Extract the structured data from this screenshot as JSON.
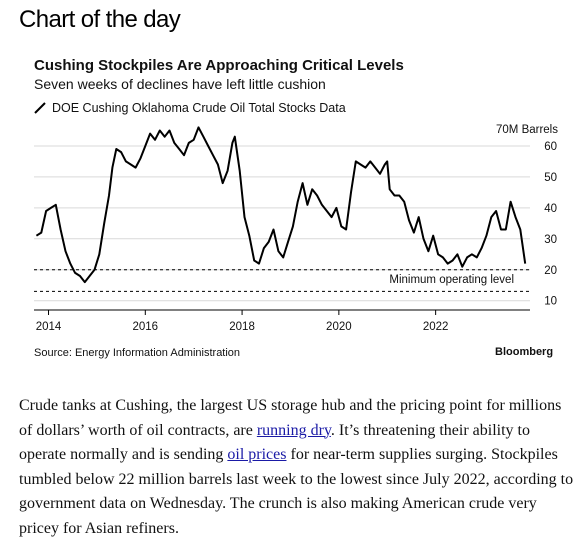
{
  "page": {
    "heading": "Chart of the day"
  },
  "chart_data": {
    "type": "line",
    "title": "Cushing Stockpiles Are Approaching Critical Levels",
    "subtitle": "Seven weeks of declines have left little cushion",
    "legend": "DOE Cushing Oklahoma Crude Oil Total Stocks Data",
    "y_unit_label": "70M Barrels",
    "ylim": [
      7,
      70
    ],
    "xlim": [
      2013.7,
      2023.95
    ],
    "y_ticks": [
      10,
      20,
      30,
      40,
      50,
      60
    ],
    "x_ticks": [
      2014,
      2016,
      2018,
      2020,
      2022
    ],
    "reference_lines": [
      {
        "label": "Minimum operating level",
        "value": 20
      },
      {
        "value": 13
      }
    ],
    "series": [
      {
        "name": "DOE Cushing Oklahoma Crude Oil Total Stocks Data",
        "points": [
          [
            2013.75,
            31
          ],
          [
            2013.85,
            32
          ],
          [
            2013.95,
            39
          ],
          [
            2014.05,
            40
          ],
          [
            2014.15,
            41
          ],
          [
            2014.25,
            33
          ],
          [
            2014.35,
            26
          ],
          [
            2014.45,
            22
          ],
          [
            2014.55,
            19
          ],
          [
            2014.65,
            18
          ],
          [
            2014.75,
            16
          ],
          [
            2014.85,
            18
          ],
          [
            2014.95,
            20
          ],
          [
            2015.05,
            25
          ],
          [
            2015.15,
            35
          ],
          [
            2015.25,
            44
          ],
          [
            2015.32,
            53
          ],
          [
            2015.4,
            59
          ],
          [
            2015.5,
            58
          ],
          [
            2015.6,
            55
          ],
          [
            2015.7,
            54
          ],
          [
            2015.8,
            53
          ],
          [
            2015.9,
            56
          ],
          [
            2016.0,
            60
          ],
          [
            2016.1,
            64
          ],
          [
            2016.2,
            62
          ],
          [
            2016.3,
            65
          ],
          [
            2016.4,
            63
          ],
          [
            2016.5,
            65
          ],
          [
            2016.6,
            61
          ],
          [
            2016.7,
            59
          ],
          [
            2016.8,
            57
          ],
          [
            2016.9,
            61
          ],
          [
            2017.0,
            62
          ],
          [
            2017.1,
            66
          ],
          [
            2017.2,
            63
          ],
          [
            2017.3,
            60
          ],
          [
            2017.4,
            57
          ],
          [
            2017.5,
            54
          ],
          [
            2017.6,
            48
          ],
          [
            2017.7,
            52
          ],
          [
            2017.8,
            61
          ],
          [
            2017.85,
            63
          ],
          [
            2017.95,
            52
          ],
          [
            2018.05,
            37
          ],
          [
            2018.15,
            31
          ],
          [
            2018.25,
            23
          ],
          [
            2018.35,
            22
          ],
          [
            2018.45,
            27
          ],
          [
            2018.55,
            29
          ],
          [
            2018.65,
            33
          ],
          [
            2018.75,
            26
          ],
          [
            2018.85,
            24
          ],
          [
            2018.95,
            29
          ],
          [
            2019.05,
            34
          ],
          [
            2019.15,
            42
          ],
          [
            2019.25,
            48
          ],
          [
            2019.35,
            41
          ],
          [
            2019.45,
            46
          ],
          [
            2019.55,
            44
          ],
          [
            2019.65,
            41
          ],
          [
            2019.75,
            39
          ],
          [
            2019.85,
            37
          ],
          [
            2019.95,
            40
          ],
          [
            2020.05,
            34
          ],
          [
            2020.15,
            33
          ],
          [
            2020.25,
            45
          ],
          [
            2020.35,
            55
          ],
          [
            2020.45,
            54
          ],
          [
            2020.55,
            53
          ],
          [
            2020.65,
            55
          ],
          [
            2020.75,
            53
          ],
          [
            2020.85,
            51
          ],
          [
            2020.95,
            54
          ],
          [
            2021.0,
            55
          ],
          [
            2021.05,
            46
          ],
          [
            2021.15,
            44
          ],
          [
            2021.25,
            44
          ],
          [
            2021.35,
            42
          ],
          [
            2021.45,
            36
          ],
          [
            2021.55,
            32
          ],
          [
            2021.65,
            37
          ],
          [
            2021.75,
            30
          ],
          [
            2021.85,
            26
          ],
          [
            2021.95,
            31
          ],
          [
            2022.05,
            25
          ],
          [
            2022.15,
            24
          ],
          [
            2022.25,
            22
          ],
          [
            2022.35,
            23
          ],
          [
            2022.45,
            25
          ],
          [
            2022.55,
            21
          ],
          [
            2022.65,
            24
          ],
          [
            2022.75,
            25
          ],
          [
            2022.85,
            24
          ],
          [
            2022.95,
            27
          ],
          [
            2023.05,
            31
          ],
          [
            2023.15,
            37
          ],
          [
            2023.25,
            39
          ],
          [
            2023.35,
            33
          ],
          [
            2023.45,
            33
          ],
          [
            2023.55,
            42
          ],
          [
            2023.65,
            37
          ],
          [
            2023.75,
            33
          ],
          [
            2023.85,
            22
          ]
        ]
      }
    ],
    "source": "Source: Energy Information Administration",
    "brand": "Bloomberg"
  },
  "article": {
    "part1": "Crude tanks at Cushing, the largest US storage hub and the pricing point for millions of dollars’ worth of oil contracts, are ",
    "link1": "running dry",
    "part2": ". It’s threatening their ability to operate normally and is sending ",
    "link2": "oil prices",
    "part3": " for near-term supplies surging. Stockpiles tumbled below 22 million barrels last week to the lowest since July 2022, according to government data on Wednesday. The crunch is also making American crude very pricey for Asian refiners."
  },
  "colors": {
    "line": "#000000",
    "grid": "#d9d9d9",
    "link": "#1a1aa6"
  }
}
